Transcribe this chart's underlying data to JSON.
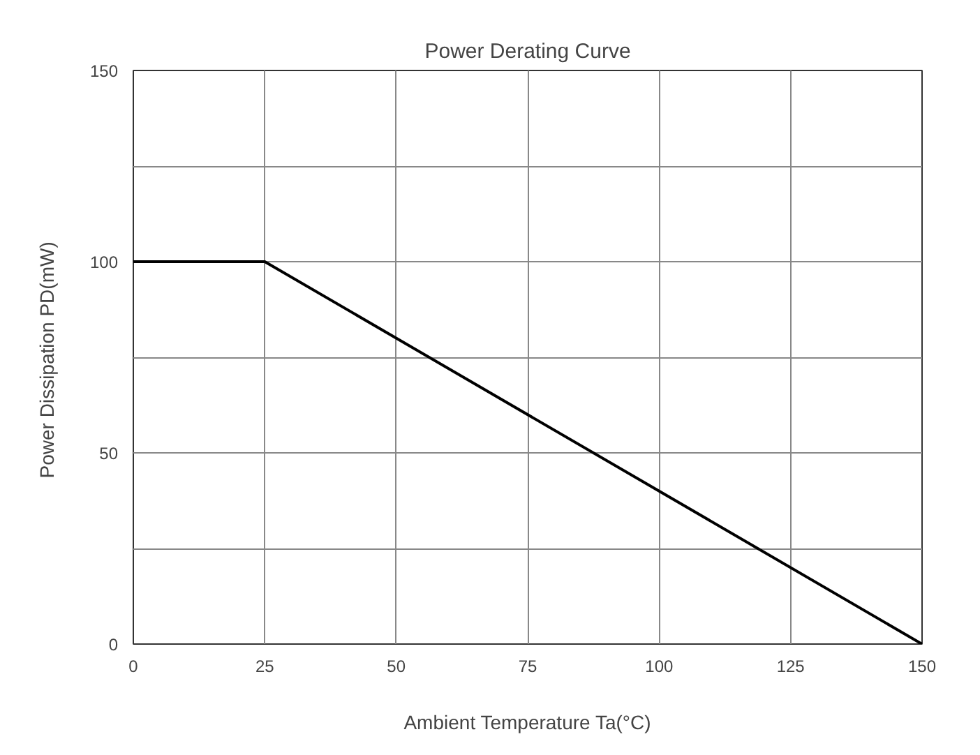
{
  "chart_data": {
    "type": "line",
    "title": "Power Derating Curve",
    "xlabel": "Ambient Temperature Ta(°C)",
    "ylabel": "Power Dissipation  PD(mW)",
    "x": [
      0,
      25,
      150
    ],
    "series": [
      {
        "color": "#000000",
        "values": [
          100,
          100,
          0
        ]
      }
    ],
    "xlim": [
      0,
      150
    ],
    "ylim": [
      0,
      150
    ],
    "xticks": [
      0,
      25,
      50,
      75,
      100,
      125,
      150
    ],
    "yticks": [
      0,
      {
        "value": 25,
        "label": null
      },
      50,
      {
        "value": 75,
        "label": null
      },
      100,
      {
        "value": 125,
        "label": null
      },
      150
    ],
    "grid": true,
    "marker": "none",
    "line_style": "solid"
  }
}
